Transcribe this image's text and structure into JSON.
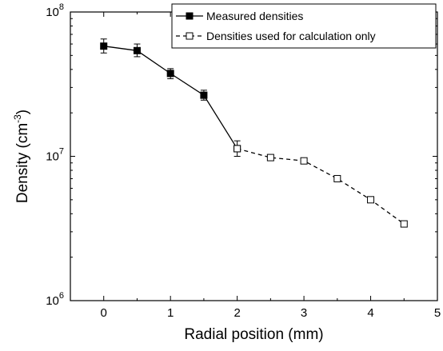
{
  "chart_data": {
    "type": "line",
    "xlabel": "Radial position (mm)",
    "ylabel_main": "Density (cm",
    "ylabel_sup": "-3",
    "ylabel_close": ")",
    "xlim": [
      -0.5,
      5
    ],
    "ylim": [
      1000000,
      100000000
    ],
    "yscale": "log",
    "grid": false,
    "legend_position": "top-right",
    "x_ticks": [
      {
        "value": 0,
        "label": "0"
      },
      {
        "value": 1,
        "label": "1"
      },
      {
        "value": 2,
        "label": "2"
      },
      {
        "value": 3,
        "label": "3"
      },
      {
        "value": 4,
        "label": "4"
      },
      {
        "value": 5,
        "label": "5"
      }
    ],
    "y_ticks": [
      {
        "value": 1000000,
        "base": "10",
        "exp": "6"
      },
      {
        "value": 10000000,
        "base": "10",
        "exp": "7"
      },
      {
        "value": 100000000,
        "base": "10",
        "exp": "8"
      }
    ],
    "series": [
      {
        "name": "Measured densities",
        "line": "solid",
        "marker": "filled-square",
        "points": [
          {
            "x": 0,
            "y": 58000000,
            "err_lo": 52000000,
            "err_hi": 65000000
          },
          {
            "x": 0.5,
            "y": 54000000,
            "err_lo": 49000000,
            "err_hi": 60000000
          },
          {
            "x": 1,
            "y": 37500000,
            "err_lo": 34500000,
            "err_hi": 40500000
          },
          {
            "x": 1.5,
            "y": 26500000,
            "err_lo": 24500000,
            "err_hi": 28700000
          },
          {
            "x": 2,
            "y": 11300000,
            "err_lo": 10000000,
            "err_hi": 12800000
          }
        ]
      },
      {
        "name": "Densities used for calculation only",
        "line": "dashed",
        "marker": "open-square",
        "points": [
          {
            "x": 2,
            "y": 11300000
          },
          {
            "x": 2.5,
            "y": 9800000
          },
          {
            "x": 3,
            "y": 9300000
          },
          {
            "x": 3.5,
            "y": 7000000
          },
          {
            "x": 4,
            "y": 5000000
          },
          {
            "x": 4.5,
            "y": 3400000
          }
        ]
      }
    ]
  }
}
